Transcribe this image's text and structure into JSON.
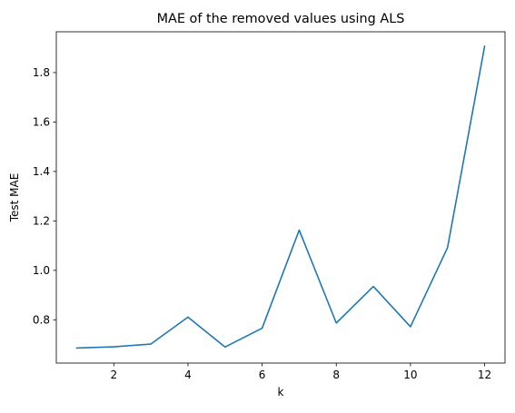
{
  "chart_data": {
    "type": "line",
    "title": "MAE of the removed values using ALS",
    "xlabel": "k",
    "ylabel": "Test MAE",
    "xlim": [
      0.45,
      12.55
    ],
    "ylim": [
      0.625,
      1.965
    ],
    "x_ticks": [
      2,
      4,
      6,
      8,
      10,
      12
    ],
    "x_tick_labels": [
      "2",
      "4",
      "6",
      "8",
      "10",
      "12"
    ],
    "y_ticks": [
      0.8,
      1.0,
      1.2,
      1.4,
      1.6,
      1.8
    ],
    "y_tick_labels": [
      "0.8",
      "1.0",
      "1.2",
      "1.4",
      "1.6",
      "1.8"
    ],
    "grid": false,
    "series": [
      {
        "color": "#1f77b4",
        "x": [
          1,
          2,
          3,
          4,
          5,
          6,
          7,
          8,
          9,
          10,
          11,
          12
        ],
        "y": [
          0.686,
          0.691,
          0.702,
          0.811,
          0.69,
          0.766,
          1.163,
          0.787,
          0.935,
          0.772,
          1.092,
          1.906
        ]
      }
    ]
  }
}
